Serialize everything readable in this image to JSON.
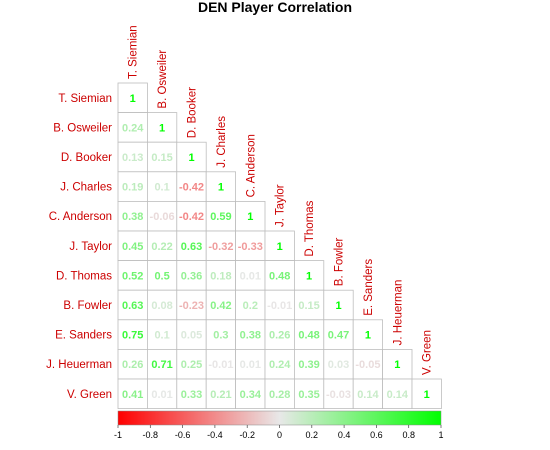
{
  "chart_data": {
    "type": "heatmap",
    "title": "DEN Player Correlation",
    "players": [
      "T. Siemian",
      "B. Osweiler",
      "D. Booker",
      "J. Charles",
      "C. Anderson",
      "J. Taylor",
      "D. Thomas",
      "B. Fowler",
      "E. Sanders",
      "J. Heuerman",
      "V. Green"
    ],
    "matrix": [
      [
        "1"
      ],
      [
        "0.24",
        "1"
      ],
      [
        "0.13",
        "0.15",
        "1"
      ],
      [
        "0.19",
        "0.1",
        "-0.42",
        "1"
      ],
      [
        "0.38",
        "-0.06",
        "-0.42",
        "0.59",
        "1"
      ],
      [
        "0.45",
        "0.22",
        "0.63",
        "-0.32",
        "-0.33",
        "1"
      ],
      [
        "0.52",
        "0.5",
        "0.36",
        "0.18",
        "0.01",
        "0.48",
        "1"
      ],
      [
        "0.63",
        "0.08",
        "-0.23",
        "0.42",
        "0.2",
        "-0.01",
        "0.15",
        "1"
      ],
      [
        "0.75",
        "0.1",
        "0.05",
        "0.3",
        "0.38",
        "0.26",
        "0.48",
        "0.47",
        "1"
      ],
      [
        "0.26",
        "0.71",
        "0.25",
        "-0.01",
        "0.01",
        "0.24",
        "0.39",
        "0.03",
        "-0.05",
        "1"
      ],
      [
        "0.41",
        "0.01",
        "0.33",
        "0.21",
        "0.34",
        "0.28",
        "0.35",
        "-0.03",
        "0.14",
        "0.14",
        "1"
      ]
    ],
    "color_scale": {
      "range": [
        -1,
        1
      ],
      "low": "#ff0000",
      "mid": "#e8e8e8",
      "high": "#00ff00",
      "ticks": [
        "-1",
        "-0.8",
        "-0.6",
        "-0.4",
        "-0.2",
        "0",
        "0.2",
        "0.4",
        "0.6",
        "0.8",
        "1"
      ]
    },
    "label_color": "#cc0000"
  }
}
